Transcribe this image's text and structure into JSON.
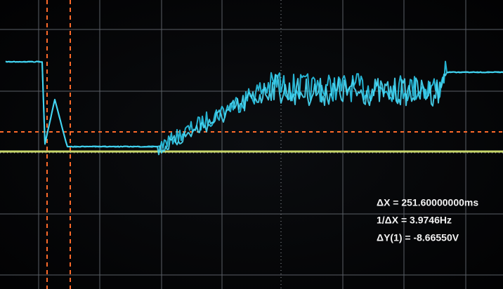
{
  "readouts": [
    "ΔX = 251.60000000ms",
    "1/ΔX = 3.9746Hz",
    "ΔY(1) = -8.66550V"
  ]
}
